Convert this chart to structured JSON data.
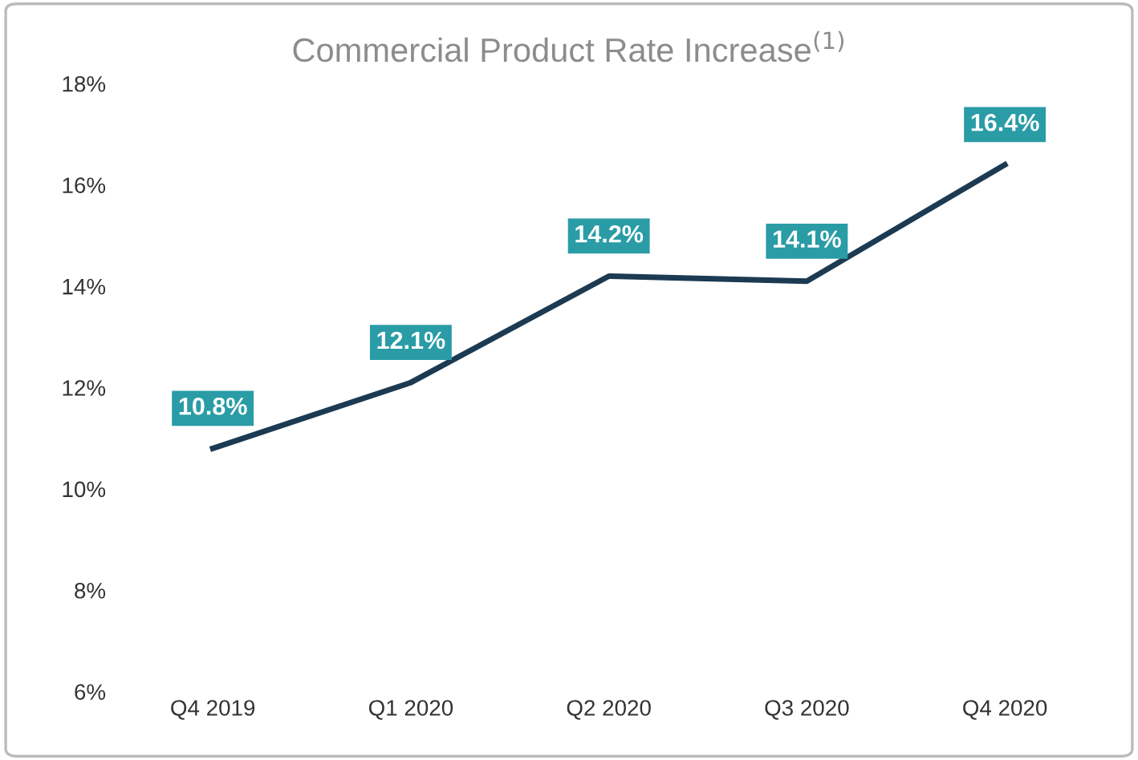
{
  "chart_data": {
    "type": "line",
    "title": "Commercial Product Rate Increase$^{(1)}$",
    "categories": [
      "Q4 2019",
      "Q1 2020",
      "Q2 2020",
      "Q3 2020",
      "Q4 2020"
    ],
    "series": [
      {
        "color": "#1c3a52",
        "values": [
          10.8,
          12.1,
          14.2,
          14.1,
          16.4
        ],
        "value_labels": [
          "10.8%",
          "12.1%",
          "14.2%",
          "14.1%",
          "16.4%"
        ]
      }
    ],
    "ylim": [
      6,
      18
    ],
    "yticks": [
      {
        "value": 6,
        "label": "6%"
      },
      {
        "value": 8,
        "label": "8%"
      },
      {
        "value": 10,
        "label": "10%"
      },
      {
        "value": 12,
        "label": "12%"
      },
      {
        "value": 14,
        "label": "14%"
      },
      {
        "value": 16,
        "label": "16%"
      },
      {
        "value": 18,
        "label": "18%"
      }
    ],
    "grid": false,
    "legend": false,
    "marker": "none",
    "line_style": "solid"
  }
}
